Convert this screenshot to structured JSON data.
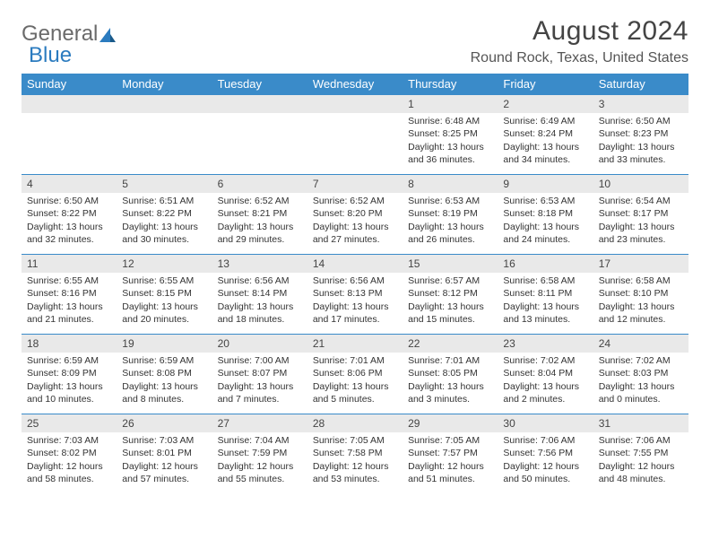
{
  "brand": {
    "general": "General",
    "blue": "Blue"
  },
  "title": "August 2024",
  "location": "Round Rock, Texas, United States",
  "colors": {
    "header_bg": "#3a8bc9",
    "header_fg": "#ffffff",
    "daynum_bg": "#e9e9e9",
    "cell_border": "#3a8bc9",
    "text": "#333333",
    "brand_gray": "#6a6a6a",
    "brand_blue": "#2b7bbf"
  },
  "weekdays": [
    "Sunday",
    "Monday",
    "Tuesday",
    "Wednesday",
    "Thursday",
    "Friday",
    "Saturday"
  ],
  "weeks": [
    [
      null,
      null,
      null,
      null,
      {
        "n": "1",
        "sr": "Sunrise: 6:48 AM",
        "ss": "Sunset: 8:25 PM",
        "dl": "Daylight: 13 hours and 36 minutes."
      },
      {
        "n": "2",
        "sr": "Sunrise: 6:49 AM",
        "ss": "Sunset: 8:24 PM",
        "dl": "Daylight: 13 hours and 34 minutes."
      },
      {
        "n": "3",
        "sr": "Sunrise: 6:50 AM",
        "ss": "Sunset: 8:23 PM",
        "dl": "Daylight: 13 hours and 33 minutes."
      }
    ],
    [
      {
        "n": "4",
        "sr": "Sunrise: 6:50 AM",
        "ss": "Sunset: 8:22 PM",
        "dl": "Daylight: 13 hours and 32 minutes."
      },
      {
        "n": "5",
        "sr": "Sunrise: 6:51 AM",
        "ss": "Sunset: 8:22 PM",
        "dl": "Daylight: 13 hours and 30 minutes."
      },
      {
        "n": "6",
        "sr": "Sunrise: 6:52 AM",
        "ss": "Sunset: 8:21 PM",
        "dl": "Daylight: 13 hours and 29 minutes."
      },
      {
        "n": "7",
        "sr": "Sunrise: 6:52 AM",
        "ss": "Sunset: 8:20 PM",
        "dl": "Daylight: 13 hours and 27 minutes."
      },
      {
        "n": "8",
        "sr": "Sunrise: 6:53 AM",
        "ss": "Sunset: 8:19 PM",
        "dl": "Daylight: 13 hours and 26 minutes."
      },
      {
        "n": "9",
        "sr": "Sunrise: 6:53 AM",
        "ss": "Sunset: 8:18 PM",
        "dl": "Daylight: 13 hours and 24 minutes."
      },
      {
        "n": "10",
        "sr": "Sunrise: 6:54 AM",
        "ss": "Sunset: 8:17 PM",
        "dl": "Daylight: 13 hours and 23 minutes."
      }
    ],
    [
      {
        "n": "11",
        "sr": "Sunrise: 6:55 AM",
        "ss": "Sunset: 8:16 PM",
        "dl": "Daylight: 13 hours and 21 minutes."
      },
      {
        "n": "12",
        "sr": "Sunrise: 6:55 AM",
        "ss": "Sunset: 8:15 PM",
        "dl": "Daylight: 13 hours and 20 minutes."
      },
      {
        "n": "13",
        "sr": "Sunrise: 6:56 AM",
        "ss": "Sunset: 8:14 PM",
        "dl": "Daylight: 13 hours and 18 minutes."
      },
      {
        "n": "14",
        "sr": "Sunrise: 6:56 AM",
        "ss": "Sunset: 8:13 PM",
        "dl": "Daylight: 13 hours and 17 minutes."
      },
      {
        "n": "15",
        "sr": "Sunrise: 6:57 AM",
        "ss": "Sunset: 8:12 PM",
        "dl": "Daylight: 13 hours and 15 minutes."
      },
      {
        "n": "16",
        "sr": "Sunrise: 6:58 AM",
        "ss": "Sunset: 8:11 PM",
        "dl": "Daylight: 13 hours and 13 minutes."
      },
      {
        "n": "17",
        "sr": "Sunrise: 6:58 AM",
        "ss": "Sunset: 8:10 PM",
        "dl": "Daylight: 13 hours and 12 minutes."
      }
    ],
    [
      {
        "n": "18",
        "sr": "Sunrise: 6:59 AM",
        "ss": "Sunset: 8:09 PM",
        "dl": "Daylight: 13 hours and 10 minutes."
      },
      {
        "n": "19",
        "sr": "Sunrise: 6:59 AM",
        "ss": "Sunset: 8:08 PM",
        "dl": "Daylight: 13 hours and 8 minutes."
      },
      {
        "n": "20",
        "sr": "Sunrise: 7:00 AM",
        "ss": "Sunset: 8:07 PM",
        "dl": "Daylight: 13 hours and 7 minutes."
      },
      {
        "n": "21",
        "sr": "Sunrise: 7:01 AM",
        "ss": "Sunset: 8:06 PM",
        "dl": "Daylight: 13 hours and 5 minutes."
      },
      {
        "n": "22",
        "sr": "Sunrise: 7:01 AM",
        "ss": "Sunset: 8:05 PM",
        "dl": "Daylight: 13 hours and 3 minutes."
      },
      {
        "n": "23",
        "sr": "Sunrise: 7:02 AM",
        "ss": "Sunset: 8:04 PM",
        "dl": "Daylight: 13 hours and 2 minutes."
      },
      {
        "n": "24",
        "sr": "Sunrise: 7:02 AM",
        "ss": "Sunset: 8:03 PM",
        "dl": "Daylight: 13 hours and 0 minutes."
      }
    ],
    [
      {
        "n": "25",
        "sr": "Sunrise: 7:03 AM",
        "ss": "Sunset: 8:02 PM",
        "dl": "Daylight: 12 hours and 58 minutes."
      },
      {
        "n": "26",
        "sr": "Sunrise: 7:03 AM",
        "ss": "Sunset: 8:01 PM",
        "dl": "Daylight: 12 hours and 57 minutes."
      },
      {
        "n": "27",
        "sr": "Sunrise: 7:04 AM",
        "ss": "Sunset: 7:59 PM",
        "dl": "Daylight: 12 hours and 55 minutes."
      },
      {
        "n": "28",
        "sr": "Sunrise: 7:05 AM",
        "ss": "Sunset: 7:58 PM",
        "dl": "Daylight: 12 hours and 53 minutes."
      },
      {
        "n": "29",
        "sr": "Sunrise: 7:05 AM",
        "ss": "Sunset: 7:57 PM",
        "dl": "Daylight: 12 hours and 51 minutes."
      },
      {
        "n": "30",
        "sr": "Sunrise: 7:06 AM",
        "ss": "Sunset: 7:56 PM",
        "dl": "Daylight: 12 hours and 50 minutes."
      },
      {
        "n": "31",
        "sr": "Sunrise: 7:06 AM",
        "ss": "Sunset: 7:55 PM",
        "dl": "Daylight: 12 hours and 48 minutes."
      }
    ]
  ]
}
